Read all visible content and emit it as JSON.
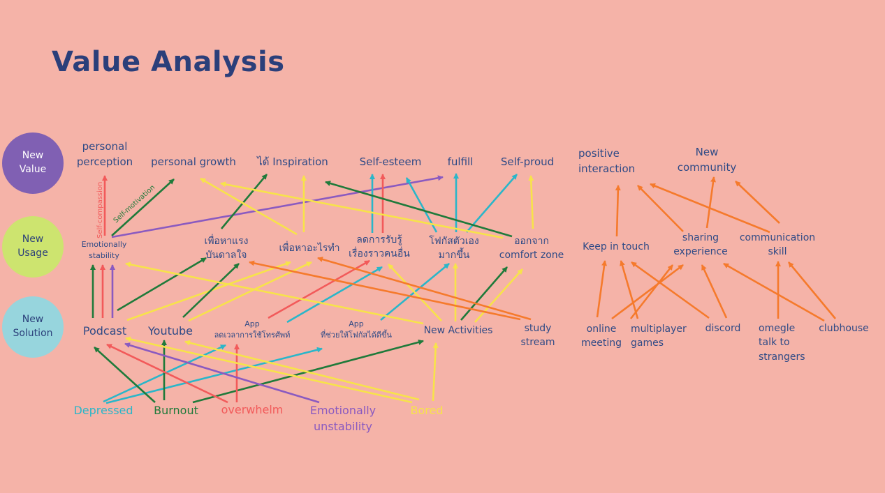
{
  "title": "Value Analysis",
  "levels": {
    "value": "New\nValue",
    "usage": "New\nUsage",
    "solution": "New\nSolution"
  },
  "colors": {
    "background": "#f5b3a8",
    "text": "#2f4a86",
    "red": "#f25a5a",
    "green": "#1f7a3a",
    "yellow": "#f7e34a",
    "teal": "#2ab6c9",
    "purple": "#8a5ac0",
    "orange": "#f57a2c"
  },
  "values": {
    "personal_perception": "personal\nperception",
    "personal_growth": "personal growth",
    "inspiration": "ได้ Inspiration",
    "self_esteem": "Self-esteem",
    "fulfill": "fulfill",
    "self_proud": "Self-proud",
    "positive_interaction": "positive\ninteraction",
    "new_community": "New\ncommunity"
  },
  "usages": {
    "emotionally_stability": "Emotionally\nstability",
    "motivation": "เพื่อหาแรง\nบันดาลใจ",
    "purpose": "เพื่อหาอะไรทำ",
    "reduce_awareness": "ลดการรับรู้\nเรื่องราวคนอื่น",
    "focus_self": "โฟกัสตัวเอง\nมากขึ้น",
    "comfort_zone": "ออกจาก\ncomfort zone",
    "keep_in_touch": "Keep in touch",
    "sharing_experience": "sharing\nexperience",
    "communication_skill": "communication\nskill"
  },
  "solutions": {
    "podcast": "Podcast",
    "youtube": "Youtube",
    "app_screen_time": "App\nลดเวลาการใช้โทรศัพท์",
    "app_focus": "App\nที่ช่วยให้โฟกัสได้ดีขึ้น",
    "new_activities": "New Activities",
    "study_stream": "study\nstream",
    "online_meeting": "online\nmeeting",
    "multiplayer_games": "multiplayer\ngames",
    "discord": "discord",
    "omegle": "omegle\ntalk to\nstrangers",
    "clubhouse": "clubhouse"
  },
  "emotions": {
    "depressed": "Depressed",
    "burnout": "Burnout",
    "overwhelm": "overwhelm",
    "emotionally_unstability": "Emotionally\nunstability",
    "bored": "Bored"
  },
  "edge_labels": {
    "self_compassion": "Self-compassion",
    "self_motivation": "Self-motivation"
  }
}
